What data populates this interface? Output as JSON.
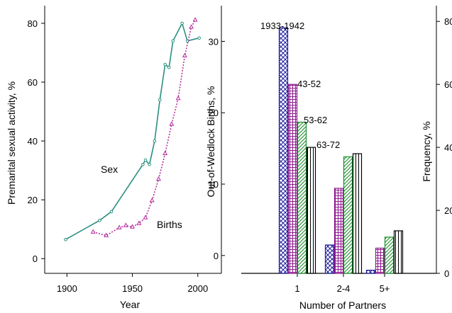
{
  "colors": {
    "sex_line": "#2a8f80",
    "births_line": "#b3279b",
    "cohort_1933_1942": "#1b1b9e",
    "cohort_43_52": "#8e1a8e",
    "cohort_53_62": "#1a8f2a",
    "cohort_63_72": "#000000",
    "axis": "#000000"
  },
  "chart_data": [
    {
      "type": "line",
      "xlabel": "Year",
      "ylabel": "Premarital sexual activity, %",
      "y2label": "Out-of-Wedlock Births, %",
      "xlim": [
        1883,
        2018
      ],
      "ylim": [
        -5,
        86
      ],
      "y2lim": [
        -2.5,
        35
      ],
      "xticks": [
        1900,
        1950,
        2000
      ],
      "yticks": [
        0,
        20,
        40,
        60,
        80
      ],
      "y2ticks": [
        0,
        10,
        20,
        30
      ],
      "annotations": [
        "Sex",
        "Births"
      ],
      "series": [
        {
          "name": "Sex",
          "axis": "left",
          "line": "solid",
          "marker": "circle",
          "x": [
            1899,
            1925,
            1934,
            1958,
            1960,
            1963,
            1967,
            1971,
            1975,
            1978,
            1981,
            1988,
            1992,
            2001
          ],
          "y": [
            6.5,
            13,
            16,
            32,
            33.5,
            32,
            40,
            54,
            66,
            65,
            74,
            80,
            74,
            75
          ]
        },
        {
          "name": "Births",
          "axis": "right",
          "line": "dotted",
          "marker": "triangle",
          "x": [
            1920,
            1930,
            1940,
            1945,
            1950,
            1955,
            1960,
            1965,
            1970,
            1975,
            1980,
            1985,
            1990,
            1995,
            1998
          ],
          "y": [
            3.3,
            2.8,
            3.9,
            4.2,
            4.0,
            4.5,
            5.3,
            7.7,
            10.7,
            14.3,
            18.4,
            22.0,
            28.0,
            32.0,
            33.0
          ]
        }
      ]
    },
    {
      "type": "bar",
      "xlabel": "Number of Partners",
      "ylabel": "Frequency, %",
      "categories": [
        "1",
        "2-4",
        "5+"
      ],
      "ylim": [
        0,
        85
      ],
      "yticks": [
        0,
        20,
        40,
        60,
        80
      ],
      "series": [
        {
          "name": "1933-1942",
          "pattern": "diagonal-crosshatch",
          "values": [
            78,
            9,
            1
          ]
        },
        {
          "name": "43-52",
          "pattern": "grid-crosshatch",
          "values": [
            60,
            27,
            8
          ]
        },
        {
          "name": "53-62",
          "pattern": "diagonal-lines",
          "values": [
            48,
            37,
            11.5
          ]
        },
        {
          "name": "63-72",
          "pattern": "vertical-lines",
          "values": [
            40,
            38,
            13.5
          ]
        }
      ]
    }
  ]
}
